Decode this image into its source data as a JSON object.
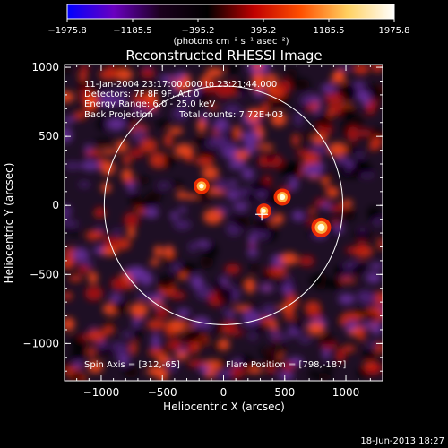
{
  "chart_data": {
    "type": "heatmap",
    "title": "Reconstructed RHESSI Image",
    "xlabel": "Heliocentric X (arcsec)",
    "ylabel": "Heliocentric Y (arcsec)",
    "xlim": [
      -1300,
      1300
    ],
    "ylim": [
      -1270,
      1020
    ],
    "x_ticks": [
      -1000,
      -500,
      0,
      500,
      1000
    ],
    "y_ticks": [
      -1000,
      -500,
      0,
      500,
      1000
    ],
    "x_tick_labels": [
      "−1000",
      "−500",
      "0",
      "500",
      "1000"
    ],
    "y_tick_labels": [
      "−1000",
      "−500",
      "0",
      "500",
      "1000"
    ],
    "colorbar": {
      "min": -1975.8,
      "max": 1975.8,
      "ticks": [
        -1975.8,
        -1185.5,
        -395.2,
        395.2,
        1185.5,
        1975.8
      ],
      "tick_labels": [
        "−1975.8",
        "−1185.5",
        "−395.2",
        "395.2",
        "1185.5",
        "1975.8"
      ],
      "unit_label": "(photons cm⁻² s⁻¹ asec⁻²)",
      "colors": [
        "#0000ff",
        "#6a00c0",
        "#1a001c",
        "#000000",
        "#c00000",
        "#ff5000",
        "#ffd060",
        "#ffffff"
      ]
    },
    "annotations": {
      "time_range": "11-Jan-2004 23:17:00.000 to 23:21:44.000",
      "detectors": "Detectors: 7F 8F 9F, Att 0",
      "energy": "Energy Range: 6.0 - 25.0 keV",
      "method": "Back Projection",
      "counts": "Total counts: 7.72E+03",
      "spin_axis": "Spin Axis = [312,-65]",
      "flare_position": "Flare Position = [798,-187]"
    },
    "solar_limb": {
      "center": [
        0,
        0
      ],
      "radius": 975
    },
    "spin_axis_marker": [
      312,
      -65
    ],
    "bright_sources": [
      {
        "x": 798,
        "y": -160,
        "value": 1975.8
      },
      {
        "x": 480,
        "y": 60,
        "value": 1400
      },
      {
        "x": -180,
        "y": 140,
        "value": 1150
      },
      {
        "x": 330,
        "y": -40,
        "value": 900
      }
    ]
  },
  "footer": {
    "date": "18-Jun-2013 18:27"
  }
}
